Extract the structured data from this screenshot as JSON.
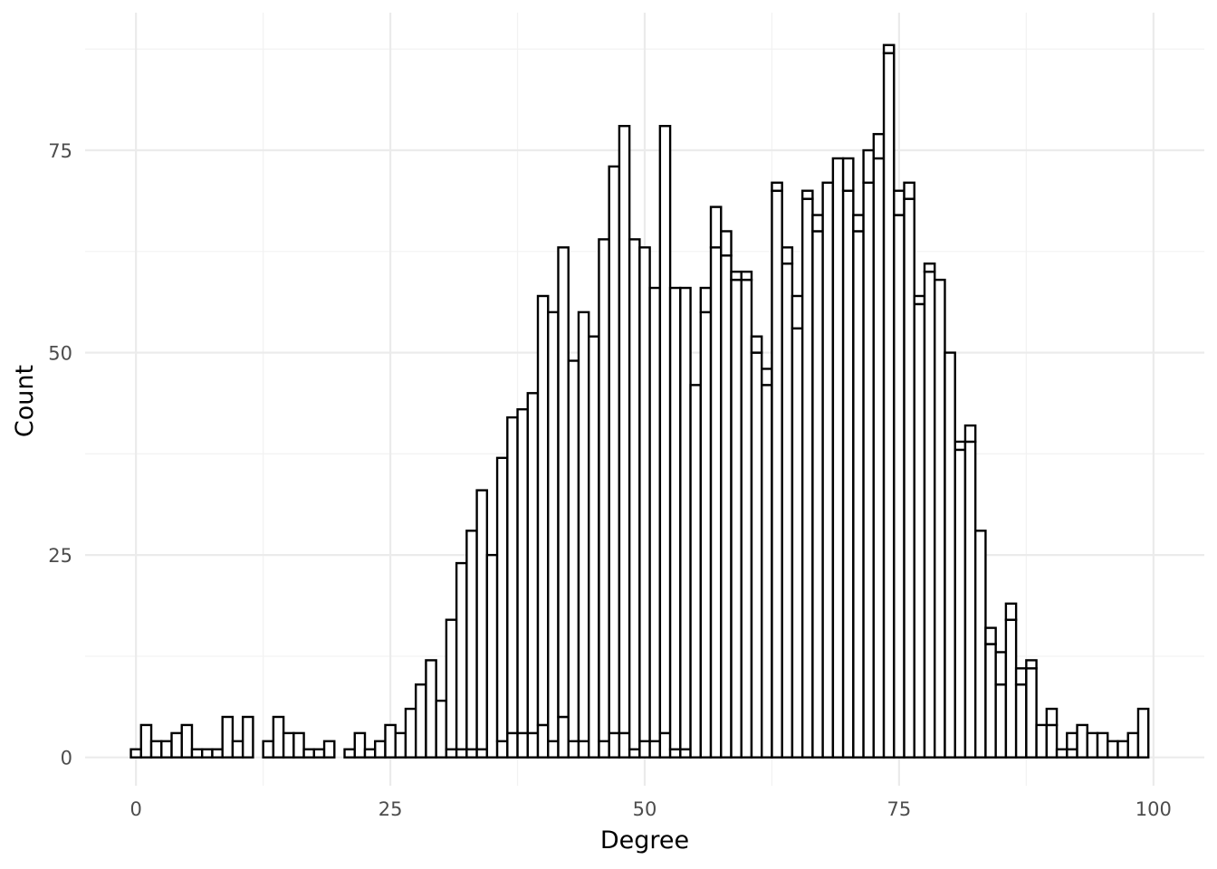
{
  "chart_data": {
    "type": "bar",
    "subtype": "stacked-histogram",
    "xlabel": "Degree",
    "ylabel": "Count",
    "xlim": [
      -5,
      105
    ],
    "ylim": [
      -3.5,
      92
    ],
    "x_ticks": [
      0,
      25,
      50,
      75,
      100
    ],
    "y_ticks": [
      0,
      25,
      50,
      75
    ],
    "grid": true,
    "bin_width": 1,
    "bar_fill": "#ffffff",
    "bar_outline": "#000000",
    "grid_major_color": "#ebebeb",
    "grid_minor_color": "#f2f2f2",
    "x": [
      0,
      1,
      2,
      3,
      4,
      5,
      6,
      7,
      8,
      9,
      10,
      11,
      12,
      13,
      14,
      15,
      16,
      17,
      18,
      19,
      20,
      21,
      22,
      23,
      24,
      25,
      26,
      27,
      28,
      29,
      30,
      31,
      32,
      33,
      34,
      35,
      36,
      37,
      38,
      39,
      40,
      41,
      42,
      43,
      44,
      45,
      46,
      47,
      48,
      49,
      50,
      51,
      52,
      53,
      54,
      55,
      56,
      57,
      58,
      59,
      60,
      61,
      62,
      63,
      64,
      65,
      66,
      67,
      68,
      69,
      70,
      71,
      72,
      73,
      74,
      75,
      76,
      77,
      78,
      79,
      80,
      81,
      82,
      83,
      84,
      85,
      86,
      87,
      88,
      89,
      90,
      91,
      92,
      93,
      94,
      95,
      96,
      97,
      98,
      99
    ],
    "series": [
      {
        "values": [
          1,
          4,
          2,
          2,
          3,
          4,
          1,
          1,
          1,
          5,
          2,
          5,
          0,
          2,
          5,
          3,
          3,
          1,
          1,
          2,
          0,
          1,
          3,
          1,
          2,
          4,
          3,
          6,
          9,
          12,
          7,
          1,
          1,
          1,
          1,
          0,
          2,
          3,
          3,
          3,
          4,
          2,
          5,
          2,
          2,
          0,
          2,
          3,
          3,
          1,
          2,
          2,
          3,
          1,
          1,
          0,
          0,
          0,
          0,
          0,
          0,
          0,
          0,
          0,
          0,
          0,
          0,
          0,
          0,
          0,
          0,
          0,
          0,
          0,
          0,
          0,
          0,
          0,
          0,
          0,
          0,
          0,
          0,
          0,
          0,
          0,
          0,
          0,
          0,
          0,
          0,
          0,
          0,
          0,
          0,
          0,
          0,
          0,
          0,
          0
        ]
      },
      {
        "values": [
          0,
          0,
          0,
          0,
          0,
          0,
          0,
          0,
          0,
          0,
          0,
          0,
          0,
          0,
          0,
          0,
          0,
          0,
          0,
          0,
          0,
          0,
          0,
          0,
          0,
          0,
          0,
          0,
          0,
          0,
          0,
          16,
          23,
          27,
          32,
          25,
          35,
          39,
          40,
          42,
          53,
          53,
          58,
          47,
          53,
          52,
          62,
          70,
          75,
          63,
          61,
          56,
          75,
          57,
          57,
          46,
          55,
          63,
          62,
          59,
          59,
          50,
          46,
          70,
          61,
          53,
          69,
          65,
          71,
          74,
          70,
          65,
          71,
          74,
          87,
          67,
          69,
          56,
          60,
          59,
          50,
          38,
          39,
          28,
          14,
          9,
          17,
          9,
          11,
          4,
          4,
          1,
          1,
          4,
          3,
          3,
          2,
          2,
          3,
          6
        ]
      },
      {
        "values": [
          0,
          0,
          0,
          0,
          0,
          0,
          0,
          0,
          0,
          0,
          0,
          0,
          0,
          0,
          0,
          0,
          0,
          0,
          0,
          0,
          0,
          0,
          0,
          0,
          0,
          0,
          0,
          0,
          0,
          0,
          0,
          0,
          0,
          0,
          0,
          0,
          0,
          0,
          0,
          0,
          0,
          0,
          0,
          0,
          0,
          0,
          0,
          0,
          0,
          0,
          0,
          0,
          0,
          0,
          0,
          0,
          3,
          5,
          3,
          1,
          1,
          2,
          2,
          1,
          2,
          4,
          1,
          2,
          0,
          0,
          4,
          2,
          4,
          3,
          1,
          3,
          2,
          1,
          1,
          0,
          0,
          1,
          2,
          0,
          2,
          4,
          2,
          2,
          1,
          0,
          2,
          0,
          2,
          0,
          0,
          0,
          0,
          0,
          0,
          0
        ]
      }
    ]
  }
}
